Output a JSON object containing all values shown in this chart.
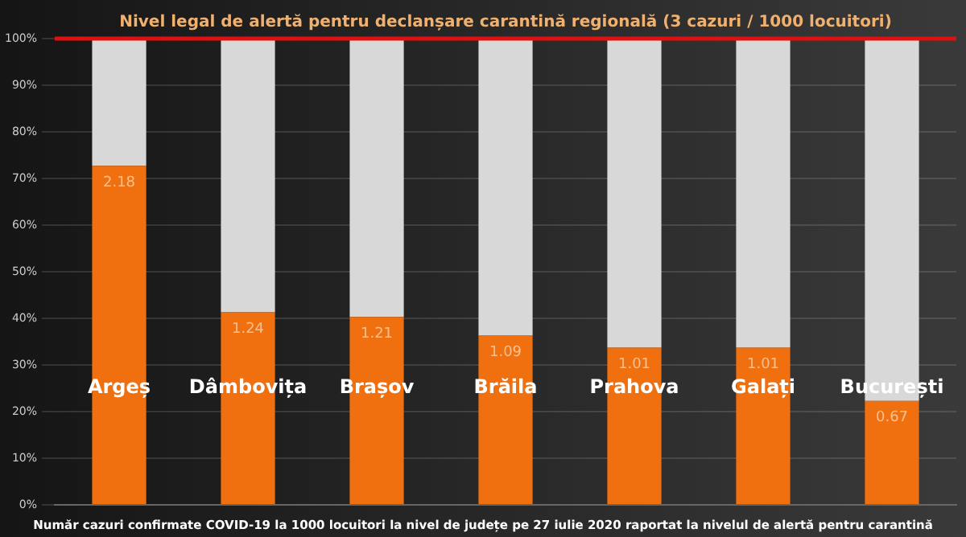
{
  "chart_data": {
    "type": "bar",
    "stacked": true,
    "categories": [
      "Argeș",
      "Dâmbovița",
      "Brașov",
      "Brăila",
      "Prahova",
      "Galați",
      "București"
    ],
    "series": [
      {
        "color": "#f07010",
        "values": [
          72.7,
          41.3,
          40.3,
          36.3,
          33.7,
          33.7,
          22.3
        ]
      },
      {
        "color": "#d8d8d8",
        "values": [
          27.3,
          58.7,
          59.7,
          63.7,
          66.3,
          66.3,
          77.7
        ]
      }
    ],
    "ylim": [
      0,
      100
    ],
    "yticks": [
      {
        "value": 0,
        "label": "0%"
      },
      {
        "value": 10,
        "label": "10%"
      },
      {
        "value": 20,
        "label": "20%"
      },
      {
        "value": 30,
        "label": "30%"
      },
      {
        "value": 40,
        "label": "40%"
      },
      {
        "value": 50,
        "label": "50%"
      },
      {
        "value": 60,
        "label": "60%"
      },
      {
        "value": 70,
        "label": "70%"
      },
      {
        "value": 80,
        "label": "80%"
      },
      {
        "value": 90,
        "label": "90%"
      },
      {
        "value": 100,
        "label": "100%"
      }
    ],
    "grid": "y",
    "legend": false,
    "ref_lines": [
      {
        "axis": "y",
        "value": 100,
        "label": "Nivel legal de alertă pentru declanșare carantină regională (3 cazuri / 1000 locuitori)",
        "color": "#e01010"
      }
    ],
    "annotations": [
      "Număr cazuri confirmate COVID-19 la 1000 locuitori la nivel de județe pe 27 iulie 2020 raportat la nivelul de alertă pentru carantină",
      {
        "text": "2.18",
        "x": "Argeș",
        "y": 72.7
      },
      {
        "text": "1.24",
        "x": "Dâmbovița",
        "y": 41.3
      },
      {
        "text": "1.21",
        "x": "Brașov",
        "y": 40.3
      },
      {
        "text": "1.09",
        "x": "Brăila",
        "y": 36.3
      },
      {
        "text": "1.01",
        "x": "Prahova",
        "y": 33.7
      },
      {
        "text": "1.01",
        "x": "Galați",
        "y": 33.7
      },
      {
        "text": "0.67",
        "x": "București",
        "y": 22.3
      }
    ]
  }
}
